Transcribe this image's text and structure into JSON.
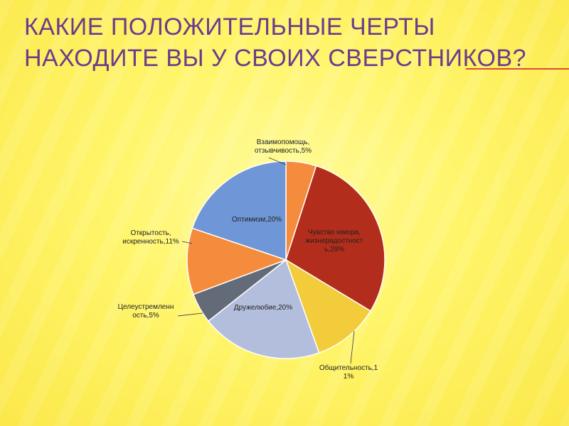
{
  "slide": {
    "title_line1": "Какие положительные черты",
    "title_line2": "находите вы у своих сверстников?"
  },
  "chart_data": {
    "type": "pie",
    "title": "",
    "slices": [
      {
        "label_lines": [
          "Взаимопомощь,",
          "отзывчивость,5%"
        ],
        "value": 5,
        "color": "#f58b3c"
      },
      {
        "label_lines": [
          "Чувство юмора,",
          "жизнерадостност",
          "ь,29%"
        ],
        "value": 29,
        "color": "#b22d1b"
      },
      {
        "label_lines": [
          "Общительность,1",
          "1%"
        ],
        "value": 11,
        "color": "#f2cc3a"
      },
      {
        "label_lines": [
          "Дружелюбие,20%"
        ],
        "value": 20,
        "color": "#b2bedb"
      },
      {
        "label_lines": [
          "Целеустремленн",
          "ость,5%"
        ],
        "value": 5,
        "color": "#636b78"
      },
      {
        "label_lines": [
          "Открытость,",
          "искренность,11%"
        ],
        "value": 11,
        "color": "#f58b3c"
      },
      {
        "label_lines": [
          "Оптимизм,20%"
        ],
        "value": 20,
        "color": "#6f96d6"
      }
    ],
    "legend": "none"
  }
}
